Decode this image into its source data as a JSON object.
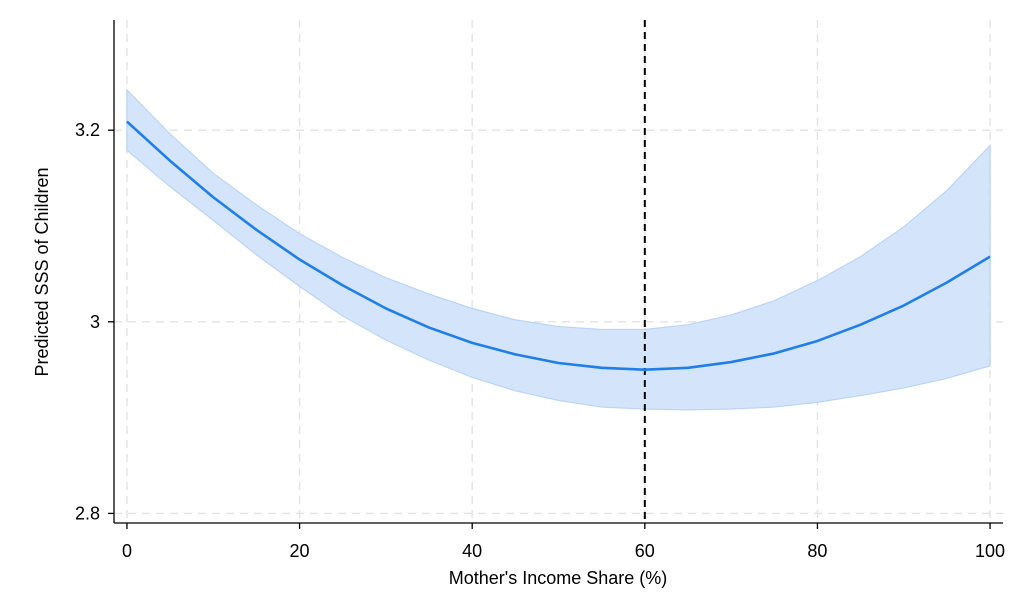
{
  "chart_data": {
    "type": "line",
    "title": "",
    "xlabel": "Mother's Income Share (%)",
    "ylabel": "Predicted SSS of Children",
    "xlim": [
      -1.5,
      101.5
    ],
    "ylim": [
      2.79,
      3.315
    ],
    "xticks": [
      0,
      20,
      40,
      60,
      80,
      100
    ],
    "xtick_labels": [
      "0",
      "20",
      "40",
      "60",
      "80",
      "100"
    ],
    "yticks": [
      2.8,
      3.0,
      3.2
    ],
    "ytick_labels": [
      "2.8",
      "3",
      "3.2"
    ],
    "grid": true,
    "legend": "none",
    "reference_line": {
      "x": 60,
      "style": "dashed",
      "color": "#000000"
    },
    "x": [
      0,
      5,
      10,
      15,
      20,
      25,
      30,
      35,
      40,
      45,
      50,
      55,
      60,
      65,
      70,
      75,
      80,
      85,
      90,
      95,
      100
    ],
    "series": [
      {
        "values": [
          3.209,
          3.168,
          3.13,
          3.096,
          3.065,
          3.038,
          3.014,
          2.994,
          2.978,
          2.966,
          2.957,
          2.952,
          2.95,
          2.952,
          2.958,
          2.967,
          2.98,
          2.997,
          3.017,
          3.041,
          3.068
        ],
        "ci_upper": [
          3.242,
          3.196,
          3.155,
          3.122,
          3.092,
          3.067,
          3.046,
          3.029,
          3.014,
          3.002,
          2.995,
          2.992,
          2.992,
          2.997,
          3.007,
          3.022,
          3.043,
          3.068,
          3.099,
          3.137,
          3.184
        ],
        "ci_lower": [
          3.179,
          3.141,
          3.106,
          3.07,
          3.037,
          3.006,
          2.981,
          2.96,
          2.942,
          2.928,
          2.918,
          2.911,
          2.909,
          2.908,
          2.909,
          2.911,
          2.916,
          2.923,
          2.931,
          2.941,
          2.954
        ]
      }
    ],
    "colors": {
      "line": "#1f7ee8",
      "band": "#d4e5fb",
      "band_edge": "#b9d4f6",
      "grid": "#e3e3e3",
      "axis": "#000000",
      "refline": "#000000"
    }
  }
}
